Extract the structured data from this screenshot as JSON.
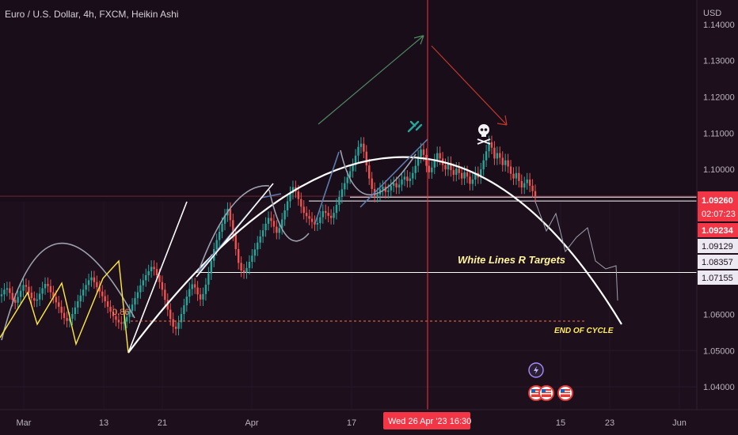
{
  "header": {
    "symbol_title": "Euro / U.S. Dollar, 4h, FXCM, Heikin Ashi"
  },
  "price_axis": {
    "currency": "USD",
    "ticks": [
      "1.14000",
      "1.13000",
      "1.12000",
      "1.11000",
      "1.10000",
      "1.05000",
      "1.04000"
    ],
    "tick_values": [
      1.14,
      1.13,
      1.12,
      1.11,
      1.1,
      1.05,
      1.04
    ],
    "partial_tick": "1.06000",
    "partial_tick_value": 1.06
  },
  "time_axis": {
    "ticks": [
      "Mar",
      "13",
      "21",
      "Apr",
      "17",
      "15",
      "23",
      "Jun"
    ],
    "crosshair_label": "Wed 26 Apr '23   16:30"
  },
  "price_labels": {
    "last_price": "1.09260",
    "countdown": "02:07:23",
    "level_1": "1.09234",
    "level_2": "1.09129",
    "level_3": "1.08357",
    "level_4": "1.07155"
  },
  "annotations": {
    "targets_text": "White Lines R Targets",
    "fib_label": "0.86",
    "end_text": "END OF CYCLE"
  },
  "colors": {
    "background": "#1e0f1d",
    "bull": "#26a69a",
    "bear": "#ef5350",
    "accent_red": "#f23645",
    "yellow": "#ffeb3b",
    "white_line": "#ffffff",
    "annotation_text": "#fff59d",
    "end_text_color": "#ffee58"
  },
  "icons": [
    "lightning-icon",
    "us-flag-icon",
    "skull-icon",
    "wrench-icon"
  ],
  "chart_data": {
    "type": "candlestick",
    "ylim": [
      1.035,
      1.145
    ],
    "series_close": [
      1.0655,
      1.0668,
      1.0672,
      1.0659,
      1.064,
      1.0632,
      1.0648,
      1.0665,
      1.0681,
      1.0676,
      1.066,
      1.0645,
      1.0638,
      1.0641,
      1.0657,
      1.0672,
      1.0684,
      1.0678,
      1.0661,
      1.0648,
      1.0633,
      1.0621,
      1.0604,
      1.059,
      1.0582,
      1.0588,
      1.0601,
      1.0619,
      1.0636,
      1.0652,
      1.0668,
      1.0681,
      1.0694,
      1.0702,
      1.0689,
      1.0675,
      1.0663,
      1.065,
      1.0636,
      1.0621,
      1.0607,
      1.0595,
      1.0585,
      1.0578,
      1.0574,
      1.058,
      1.0593,
      1.061,
      1.0627,
      1.0645,
      1.0661,
      1.068,
      1.0694,
      1.0708,
      1.0719,
      1.0731,
      1.0725,
      1.0708,
      1.0689,
      1.0668,
      1.064,
      1.0613,
      1.0587,
      1.0566,
      1.056,
      1.0578,
      1.0601,
      1.0625,
      1.0649,
      1.067,
      1.0683,
      1.0674,
      1.0655,
      1.0641,
      1.0656,
      1.0682,
      1.0713,
      1.0748,
      1.078,
      1.0805,
      1.0828,
      1.085,
      1.0873,
      1.0891,
      1.086,
      1.082,
      1.078,
      1.0742,
      1.0721,
      1.0716,
      1.0728,
      1.0745,
      1.0762,
      1.0779,
      1.0798,
      1.0815,
      1.0832,
      1.085,
      1.0866,
      1.0858,
      1.0842,
      1.0825,
      1.0838,
      1.0862,
      1.0887,
      1.0912,
      1.0935,
      1.0951,
      1.0939,
      1.0918,
      1.0897,
      1.088,
      1.0871,
      1.0864,
      1.0855,
      1.0848,
      1.0852,
      1.0868,
      1.0885,
      1.088,
      1.0872,
      1.0866,
      1.088,
      1.0902,
      1.0924,
      1.0945,
      1.0962,
      1.0978,
      1.0995,
      1.1012,
      1.1038,
      1.1062,
      1.1071,
      1.1049,
      1.1011,
      1.0975,
      1.0946,
      1.0927,
      1.0931,
      1.0945,
      1.0952,
      1.0938,
      1.0942,
      1.0955,
      1.0962,
      1.095,
      1.0958,
      1.0972,
      1.098,
      1.0968,
      1.0975,
      1.099,
      1.101,
      1.1035,
      1.1055,
      1.104,
      1.101,
      1.0992,
      1.1005,
      1.1025,
      1.1045,
      1.103,
      1.1012,
      1.1,
      1.1018,
      1.0998,
      1.0985,
      1.1002,
      1.099,
      1.0975,
      1.0992,
      1.098,
      1.096,
      1.0972,
      1.099,
      1.0978,
      1.1,
      1.1025,
      1.105,
      1.1075,
      1.106,
      1.103,
      1.1045,
      1.1032,
      1.1012,
      1.1025,
      1.1008,
      1.0988,
      1.0975,
      1.099,
      1.0968,
      1.095,
      1.0962,
      1.0972,
      1.0955,
      1.094,
      1.0926
    ]
  }
}
